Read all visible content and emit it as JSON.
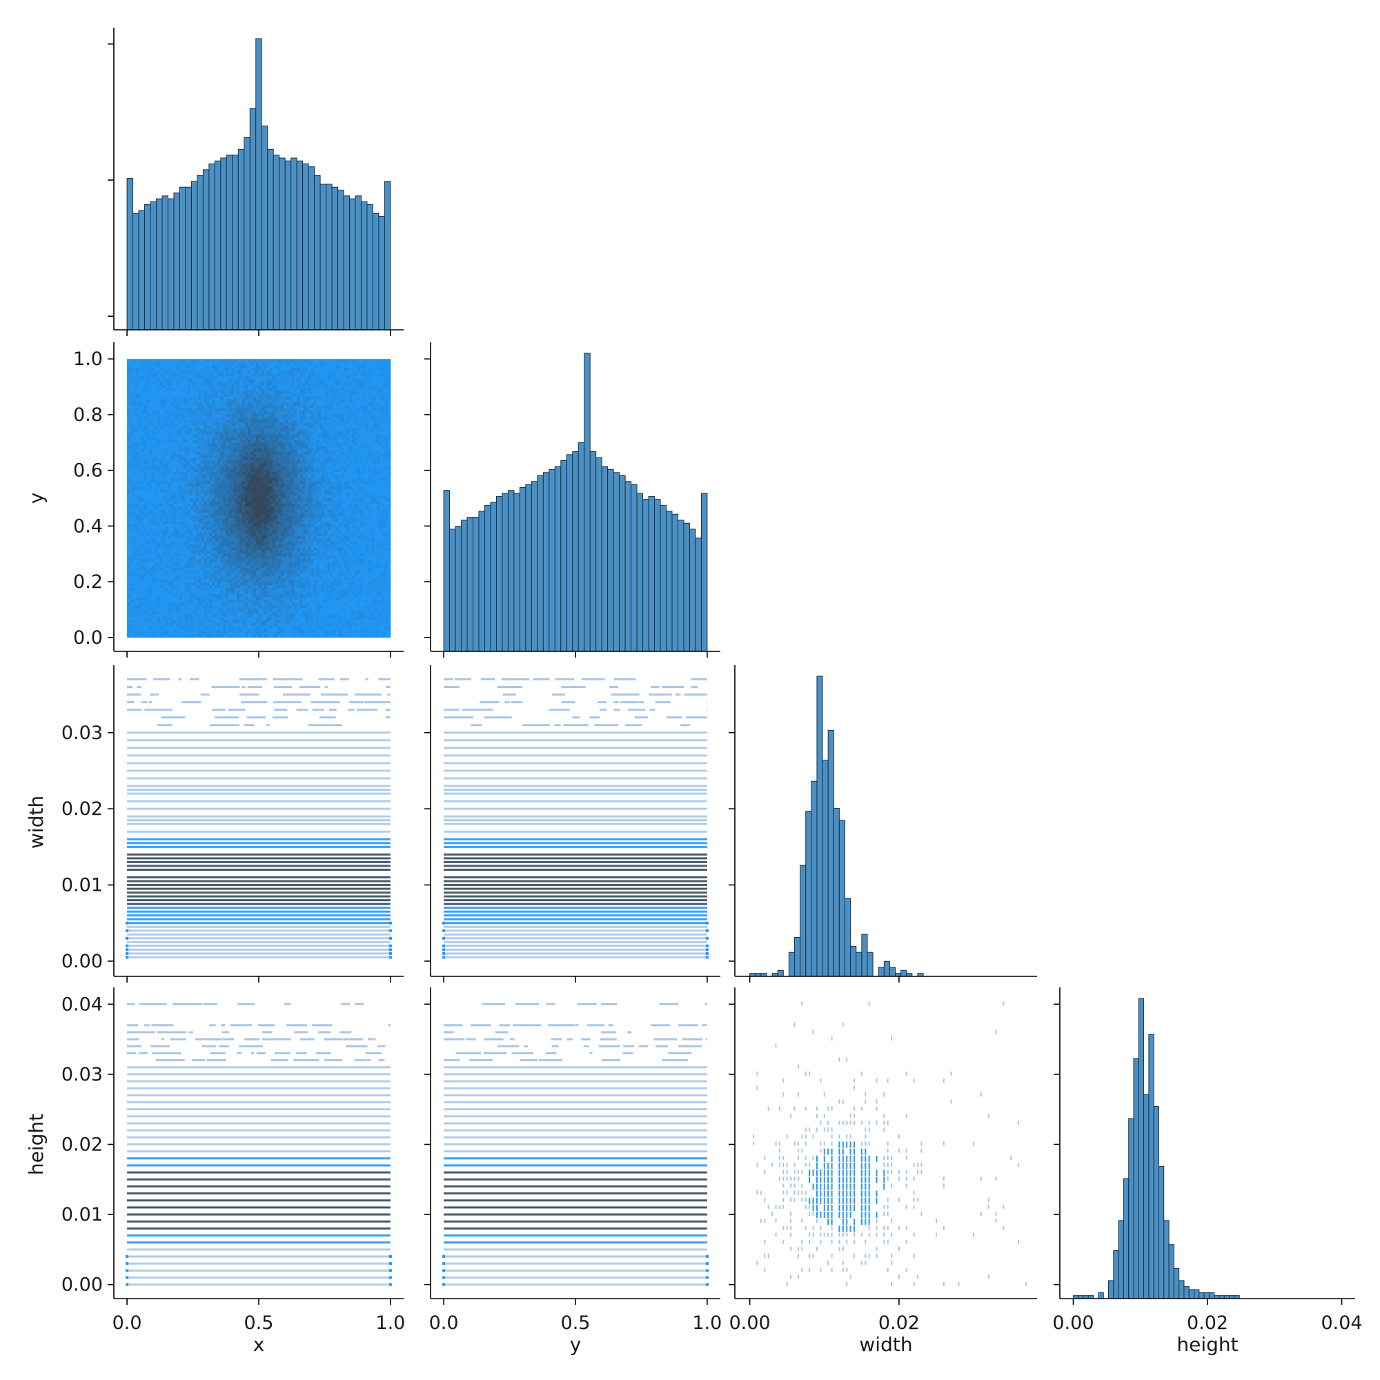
{
  "chart_data": {
    "type": "pairplot",
    "layout": "corner",
    "variables": [
      "x",
      "y",
      "width",
      "height"
    ],
    "xlabels": [
      "x",
      "y",
      "width",
      "height"
    ],
    "ylabels": [
      "",
      "y",
      "width",
      "height"
    ],
    "colors": {
      "bar": "#4a90c4",
      "bar_edge": "#1f2f3f",
      "dense": "#34495e",
      "sparse": "#2196f3",
      "light_line": "#a9c6e6",
      "axis": "#000000"
    },
    "axes": {
      "x": {
        "range": [
          -0.05,
          1.05
        ],
        "ticks": [
          0.0,
          0.5,
          1.0
        ],
        "tick_labels": [
          "0.0",
          "0.5",
          "1.0"
        ]
      },
      "y": {
        "range": [
          -0.05,
          1.05
        ],
        "ticks": [
          0.0,
          0.2,
          0.4,
          0.6,
          0.8,
          1.0
        ],
        "tick_labels": [
          "0.0",
          "0.2",
          "0.4",
          "0.6",
          "0.8",
          "1.0"
        ],
        "x_tick_labels": [
          "0.0",
          "0.5",
          "1.0"
        ],
        "x_ticks": [
          0.0,
          0.5,
          1.0
        ]
      },
      "width": {
        "range": [
          -0.002,
          0.0385
        ],
        "ticks": [
          0.0,
          0.01,
          0.02,
          0.03
        ],
        "tick_labels": [
          "0.00",
          "0.01",
          "0.02",
          "0.03"
        ],
        "x_ticks": [
          0.0,
          0.02
        ],
        "x_tick_labels": [
          "0.00",
          "0.02"
        ]
      },
      "height": {
        "range": [
          -0.002,
          0.042
        ],
        "ticks": [
          0.0,
          0.01,
          0.02,
          0.03,
          0.04
        ],
        "tick_labels": [
          "0.00",
          "0.01",
          "0.02",
          "0.03",
          "0.04"
        ],
        "x_ticks": [
          0.0,
          0.02,
          0.04
        ],
        "x_tick_labels": [
          "0.00",
          "0.02",
          "0.04"
        ]
      }
    },
    "histograms": {
      "x": {
        "bins": [
          0.0,
          1.0
        ],
        "values": [
          0.52,
          0.4,
          0.41,
          0.43,
          0.44,
          0.45,
          0.46,
          0.45,
          0.47,
          0.49,
          0.49,
          0.51,
          0.53,
          0.55,
          0.57,
          0.58,
          0.59,
          0.6,
          0.6,
          0.62,
          0.66,
          0.76,
          1.0,
          0.7,
          0.62,
          0.6,
          0.59,
          0.58,
          0.59,
          0.58,
          0.57,
          0.56,
          0.53,
          0.5,
          0.5,
          0.49,
          0.48,
          0.46,
          0.45,
          0.46,
          0.44,
          0.43,
          0.4,
          0.39,
          0.51
        ]
      },
      "y": {
        "bins": [
          0.0,
          1.0
        ],
        "values": [
          0.54,
          0.41,
          0.42,
          0.44,
          0.45,
          0.45,
          0.47,
          0.49,
          0.5,
          0.52,
          0.53,
          0.54,
          0.53,
          0.55,
          0.56,
          0.57,
          0.59,
          0.6,
          0.61,
          0.62,
          0.64,
          0.66,
          0.67,
          0.7,
          1.0,
          0.67,
          0.65,
          0.62,
          0.61,
          0.6,
          0.59,
          0.57,
          0.56,
          0.53,
          0.51,
          0.52,
          0.51,
          0.49,
          0.47,
          0.46,
          0.44,
          0.43,
          0.41,
          0.38,
          0.53
        ]
      },
      "width": {
        "bin_start": 0.0,
        "bin_width": 0.00075,
        "values": [
          0.01,
          0.01,
          0.01,
          0.0,
          0.01,
          0.02,
          0.0,
          0.08,
          0.13,
          0.37,
          0.55,
          0.65,
          1.0,
          0.72,
          0.82,
          0.56,
          0.52,
          0.26,
          0.1,
          0.08,
          0.14,
          0.08,
          0.0,
          0.03,
          0.05,
          0.03,
          0.01,
          0.02,
          0.01,
          0.0,
          0.01,
          0.0,
          0.0,
          0.0,
          0.0,
          0.0,
          0.0,
          0.0,
          0.0,
          0.0,
          0.0,
          0.0,
          0.0,
          0.0,
          0.0,
          0.0,
          0.0
        ]
      },
      "height": {
        "bin_start": 0.0,
        "bin_width": 0.00075,
        "values": [
          0.01,
          0.01,
          0.01,
          0.01,
          0.0,
          0.02,
          0.0,
          0.06,
          0.16,
          0.26,
          0.4,
          0.6,
          0.8,
          1.0,
          0.68,
          0.88,
          0.64,
          0.44,
          0.26,
          0.18,
          0.1,
          0.06,
          0.04,
          0.03,
          0.03,
          0.02,
          0.02,
          0.02,
          0.01,
          0.01,
          0.01,
          0.01,
          0.01,
          0.0,
          0.0,
          0.0,
          0.0,
          0.0,
          0.0,
          0.0,
          0.0,
          0.0,
          0.0,
          0.0,
          0.0,
          0.0,
          0.0,
          0.0,
          0.0,
          0.0,
          0.0,
          0.0,
          0.0,
          0.0,
          0.0,
          0.0,
          0.0,
          0.0,
          0.0
        ]
      }
    },
    "joint_y_vs_x": {
      "type": "heatmap",
      "description_values": {
        "dense_center": [
          0.5,
          0.5
        ],
        "range_x": [
          0.0,
          1.0
        ],
        "range_y": [
          0.0,
          1.0
        ]
      }
    },
    "joint_width_levels": [
      0.0005,
      0.001,
      0.0015,
      0.002,
      0.0025,
      0.003,
      0.0035,
      0.004,
      0.0045,
      0.005,
      0.0055,
      0.006,
      0.0065,
      0.007,
      0.0075,
      0.008,
      0.0085,
      0.009,
      0.0095,
      0.01,
      0.0105,
      0.011,
      0.012,
      0.0125,
      0.013,
      0.0135,
      0.014,
      0.015,
      0.0155,
      0.016,
      0.017,
      0.018,
      0.0185,
      0.019,
      0.02,
      0.021,
      0.022,
      0.0225,
      0.023,
      0.024,
      0.025,
      0.026,
      0.027,
      0.028,
      0.029,
      0.03,
      0.031,
      0.032,
      0.033,
      0.034,
      0.035,
      0.036,
      0.037
    ],
    "joint_height_levels": [
      0.0,
      0.001,
      0.002,
      0.003,
      0.004,
      0.005,
      0.006,
      0.007,
      0.008,
      0.009,
      0.01,
      0.011,
      0.012,
      0.013,
      0.014,
      0.015,
      0.016,
      0.017,
      0.018,
      0.019,
      0.02,
      0.021,
      0.022,
      0.023,
      0.024,
      0.025,
      0.026,
      0.027,
      0.028,
      0.029,
      0.03,
      0.031,
      0.032,
      0.033,
      0.034,
      0.035,
      0.036,
      0.037,
      0.04
    ]
  }
}
